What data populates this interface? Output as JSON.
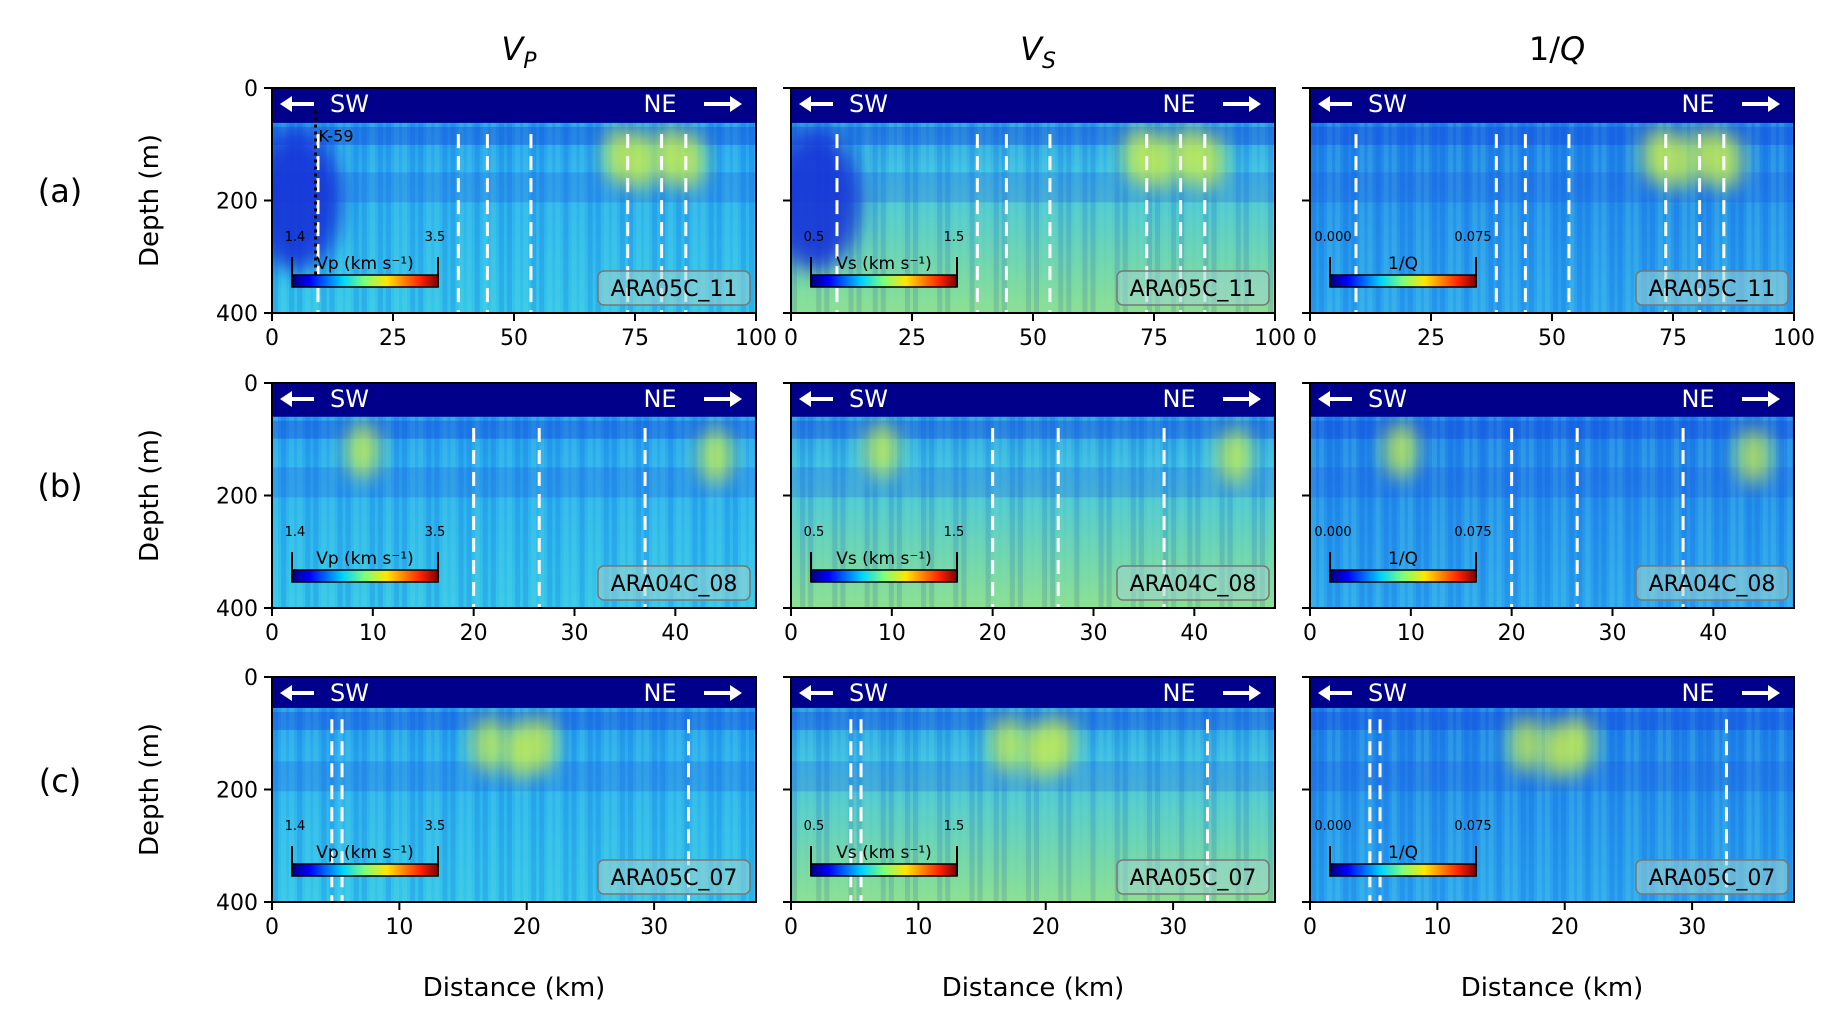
{
  "column_titles": [
    {
      "base": "V",
      "sub": "P",
      "italic": true
    },
    {
      "base": "V",
      "sub": "S",
      "italic": true
    },
    {
      "base": "1/",
      "sub": "",
      "tail": "Q",
      "italic": false
    }
  ],
  "row_labels": [
    "(a)",
    "(b)",
    "(c)"
  ],
  "axis_labels": {
    "y": "Depth (m)",
    "x": "Distance (km)"
  },
  "direction_labels": {
    "left": "SW",
    "right": "NE"
  },
  "well_label": "K-59",
  "colors": {
    "water": "#00008b",
    "background_field": "#27b8f0",
    "line_name_box": "#9fd4cf",
    "marker": "#ffffff"
  },
  "colorbars": [
    {
      "label": "Vp (km s⁻¹)",
      "min": "1.4",
      "max": "3.5"
    },
    {
      "label": "Vs (km s⁻¹)",
      "min": "0.5",
      "max": "1.5"
    },
    {
      "label": "1/Q",
      "min": "0.000",
      "max": "0.075"
    }
  ],
  "chart_data": [
    {
      "type": "heatmap",
      "row": "(a)",
      "line_name": "ARA05C_11",
      "xlim": [
        0,
        100
      ],
      "ylim": [
        400,
        0
      ],
      "xticks": [
        0,
        25,
        50,
        75,
        100
      ],
      "yticks": [
        0,
        200,
        400
      ],
      "seafloor_depth_m": 62,
      "well_K59_km": 9,
      "dashed_lines_km": {
        "Vp": [
          9.5,
          38.5,
          44.5,
          53.5,
          73.5,
          80.5,
          85.5
        ],
        "Vs": [
          9.5,
          38.5,
          44.5,
          53.5,
          73.5,
          80.5,
          85.5
        ],
        "1/Q": [
          9.5,
          38.5,
          44.5,
          53.5,
          73.5,
          80.5,
          85.5
        ]
      },
      "panels": [
        "Vp",
        "Vs",
        "1/Q"
      ],
      "hotspots_km": [
        72,
        76,
        82,
        86
      ]
    },
    {
      "type": "heatmap",
      "row": "(b)",
      "line_name": "ARA04C_08",
      "xlim": [
        0,
        48
      ],
      "ylim": [
        400,
        0
      ],
      "xticks": [
        0,
        10,
        20,
        30,
        40
      ],
      "yticks": [
        0,
        200,
        400
      ],
      "seafloor_depth_m": 60,
      "dashed_lines_km": {
        "Vp": [
          20,
          26.5,
          37
        ],
        "Vs": [
          20,
          26.5,
          37
        ],
        "1/Q": [
          20,
          26.5,
          37
        ]
      },
      "panels": [
        "Vp",
        "Vs",
        "1/Q"
      ],
      "hotspots_km": [
        9,
        44
      ]
    },
    {
      "type": "heatmap",
      "row": "(c)",
      "line_name": "ARA05C_07",
      "xlim": [
        0,
        38
      ],
      "ylim": [
        400,
        0
      ],
      "xticks": [
        0,
        10,
        20,
        30
      ],
      "yticks": [
        0,
        200,
        400
      ],
      "seafloor_depth_m": 55,
      "dashed_lines_km": {
        "Vp": [
          4.7,
          5.5,
          32.7
        ],
        "Vs": [
          4.7,
          5.5,
          32.7
        ],
        "1/Q": [
          4.7,
          5.5,
          32.7
        ]
      },
      "panels": [
        "Vp",
        "Vs",
        "1/Q"
      ],
      "hotspots_km": [
        17,
        19.5,
        21
      ]
    }
  ]
}
